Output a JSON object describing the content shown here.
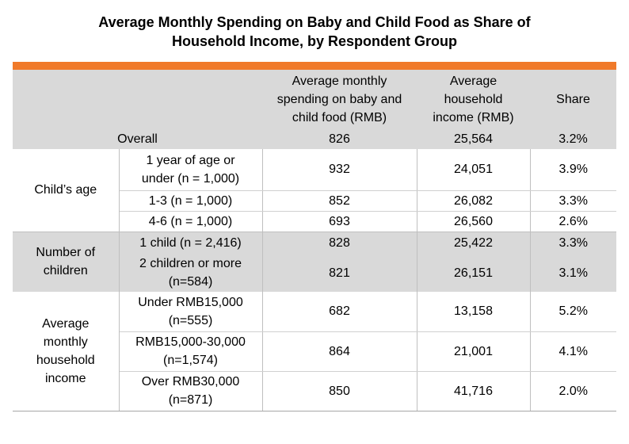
{
  "title": {
    "line1": "Average Monthly Spending on Baby and Child Food as Share of",
    "line2": "Household Income, by Respondent Group"
  },
  "colors": {
    "accent_bar": "#f07a2a",
    "shade": "#d9d9d9"
  },
  "header": {
    "col1": "",
    "col2": "",
    "col3_l1": "Average monthly",
    "col3_l2": "spending on baby and",
    "col3_l3": "child food (RMB)",
    "col4_l1": "Average",
    "col4_l2": "household",
    "col4_l3": "income (RMB)",
    "col5": "Share"
  },
  "overall": {
    "label": "Overall",
    "spending": "826",
    "income": "25,564",
    "share": "3.2%"
  },
  "groups": {
    "age": {
      "label": "Child’s age",
      "rows": [
        {
          "label_l1": "1 year of age or",
          "label_l2": "under (n = 1,000)",
          "spending": "932",
          "income": "24,051",
          "share": "3.9%"
        },
        {
          "label": "1-3 (n = 1,000)",
          "spending": "852",
          "income": "26,082",
          "share": "3.3%"
        },
        {
          "label": "4-6 (n = 1,000)",
          "spending": "693",
          "income": "26,560",
          "share": "2.6%"
        }
      ]
    },
    "children": {
      "label_l1": "Number of",
      "label_l2": "children",
      "rows": [
        {
          "label": "1 child (n = 2,416)",
          "spending": "828",
          "income": "25,422",
          "share": "3.3%"
        },
        {
          "label_l1": "2 children or more",
          "label_l2": "(n=584)",
          "spending": "821",
          "income": "26,151",
          "share": "3.1%"
        }
      ]
    },
    "income": {
      "label_l1": "Average",
      "label_l2": "monthly",
      "label_l3": "household",
      "label_l4": "income",
      "rows": [
        {
          "label_l1": "Under RMB15,000",
          "label_l2": "(n=555)",
          "spending": "682",
          "income": "13,158",
          "share": "5.2%"
        },
        {
          "label_l1": "RMB15,000-30,000",
          "label_l2": "(n=1,574)",
          "spending": "864",
          "income": "21,001",
          "share": "4.1%"
        },
        {
          "label_l1": "Over RMB30,000",
          "label_l2": "(n=871)",
          "spending": "850",
          "income": "41,716",
          "share": "2.0%"
        }
      ]
    }
  }
}
